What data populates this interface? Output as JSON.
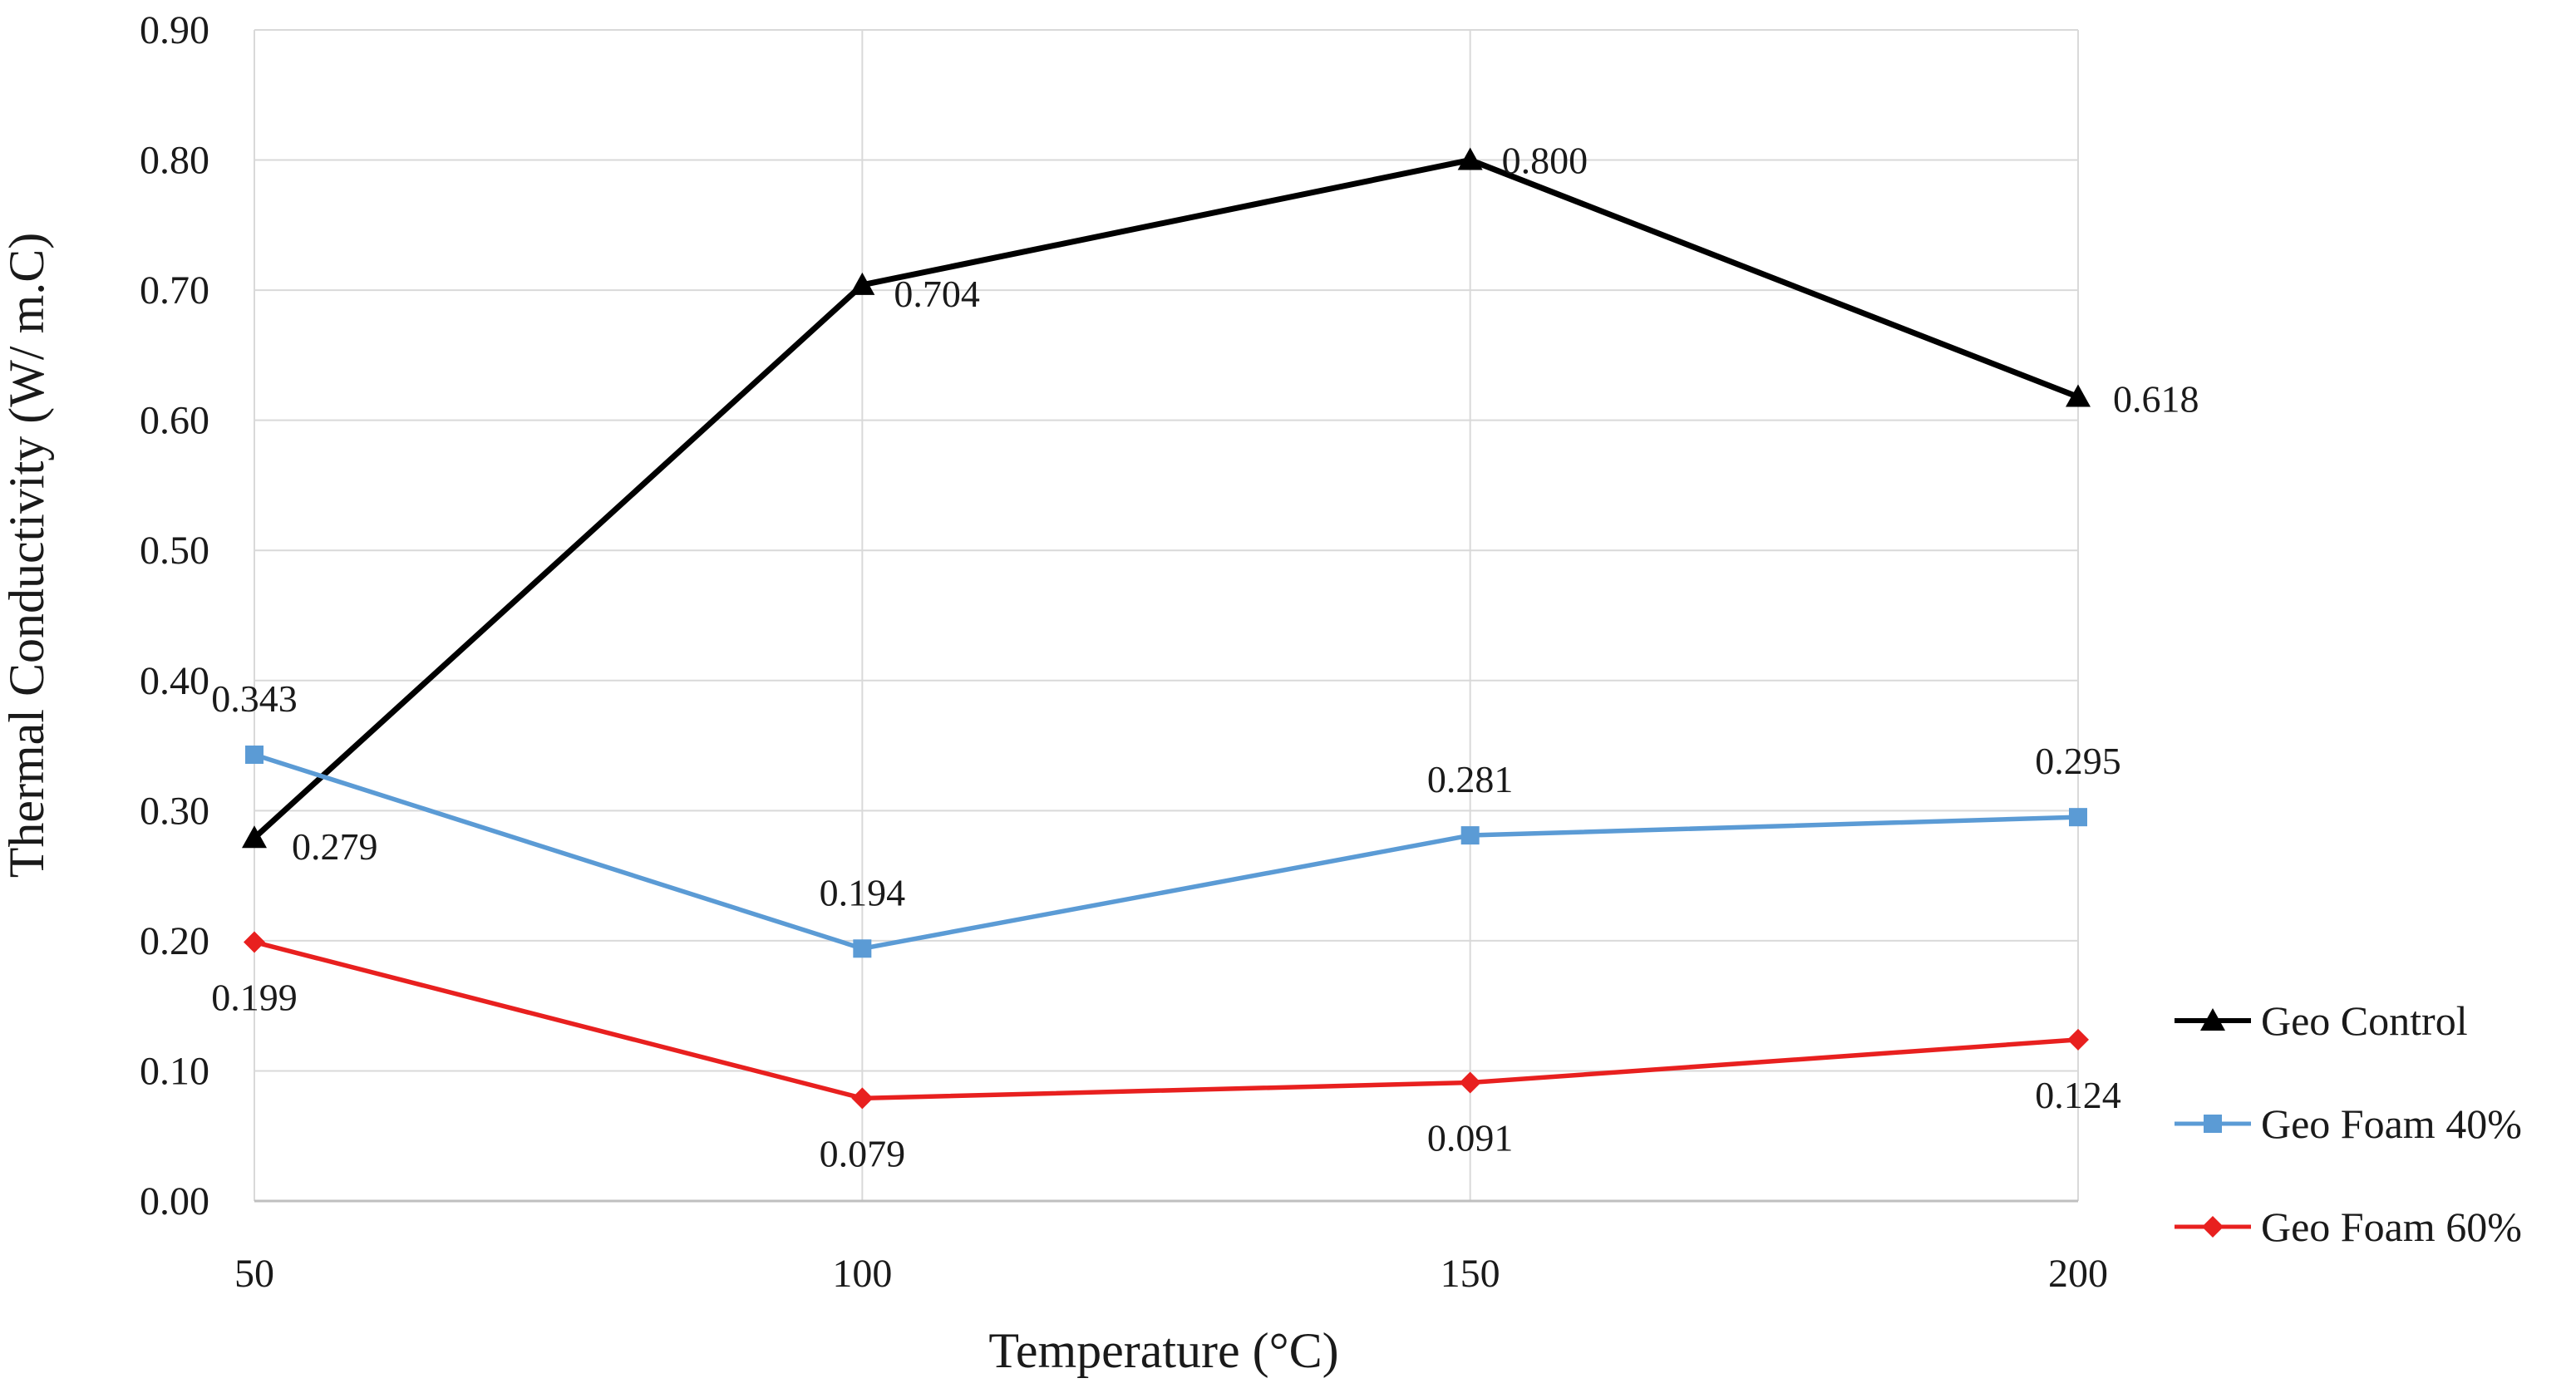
{
  "chart_data": {
    "type": "line",
    "title": "",
    "xlabel": "Temperature (°C)",
    "ylabel": "Thermal Conductivity (W/ m.C)",
    "categories": [
      "50",
      "100",
      "150",
      "200"
    ],
    "ylim": [
      0,
      0.9
    ],
    "y_ticks": [
      "0.00",
      "0.10",
      "0.20",
      "0.30",
      "0.40",
      "0.50",
      "0.60",
      "0.70",
      "0.80",
      "0.90"
    ],
    "grid": true,
    "legend_position": "right",
    "series": [
      {
        "name": "Geo Control",
        "color": "#000000",
        "marker": "triangle",
        "values": [
          0.279,
          0.704,
          0.8,
          0.618
        ],
        "labels": [
          "0.279",
          "0.704",
          "0.800",
          "0.618"
        ]
      },
      {
        "name": "Geo Foam 40%",
        "color": "#5b9bd5",
        "marker": "square",
        "values": [
          0.343,
          0.194,
          0.281,
          0.295
        ],
        "labels": [
          "0.343",
          "0.194",
          "0.281",
          "0.295"
        ]
      },
      {
        "name": "Geo Foam 60%",
        "color": "#e8201f",
        "marker": "diamond",
        "values": [
          0.199,
          0.079,
          0.091,
          0.124
        ],
        "labels": [
          "0.199",
          "0.079",
          "0.091",
          "0.124"
        ]
      }
    ]
  }
}
